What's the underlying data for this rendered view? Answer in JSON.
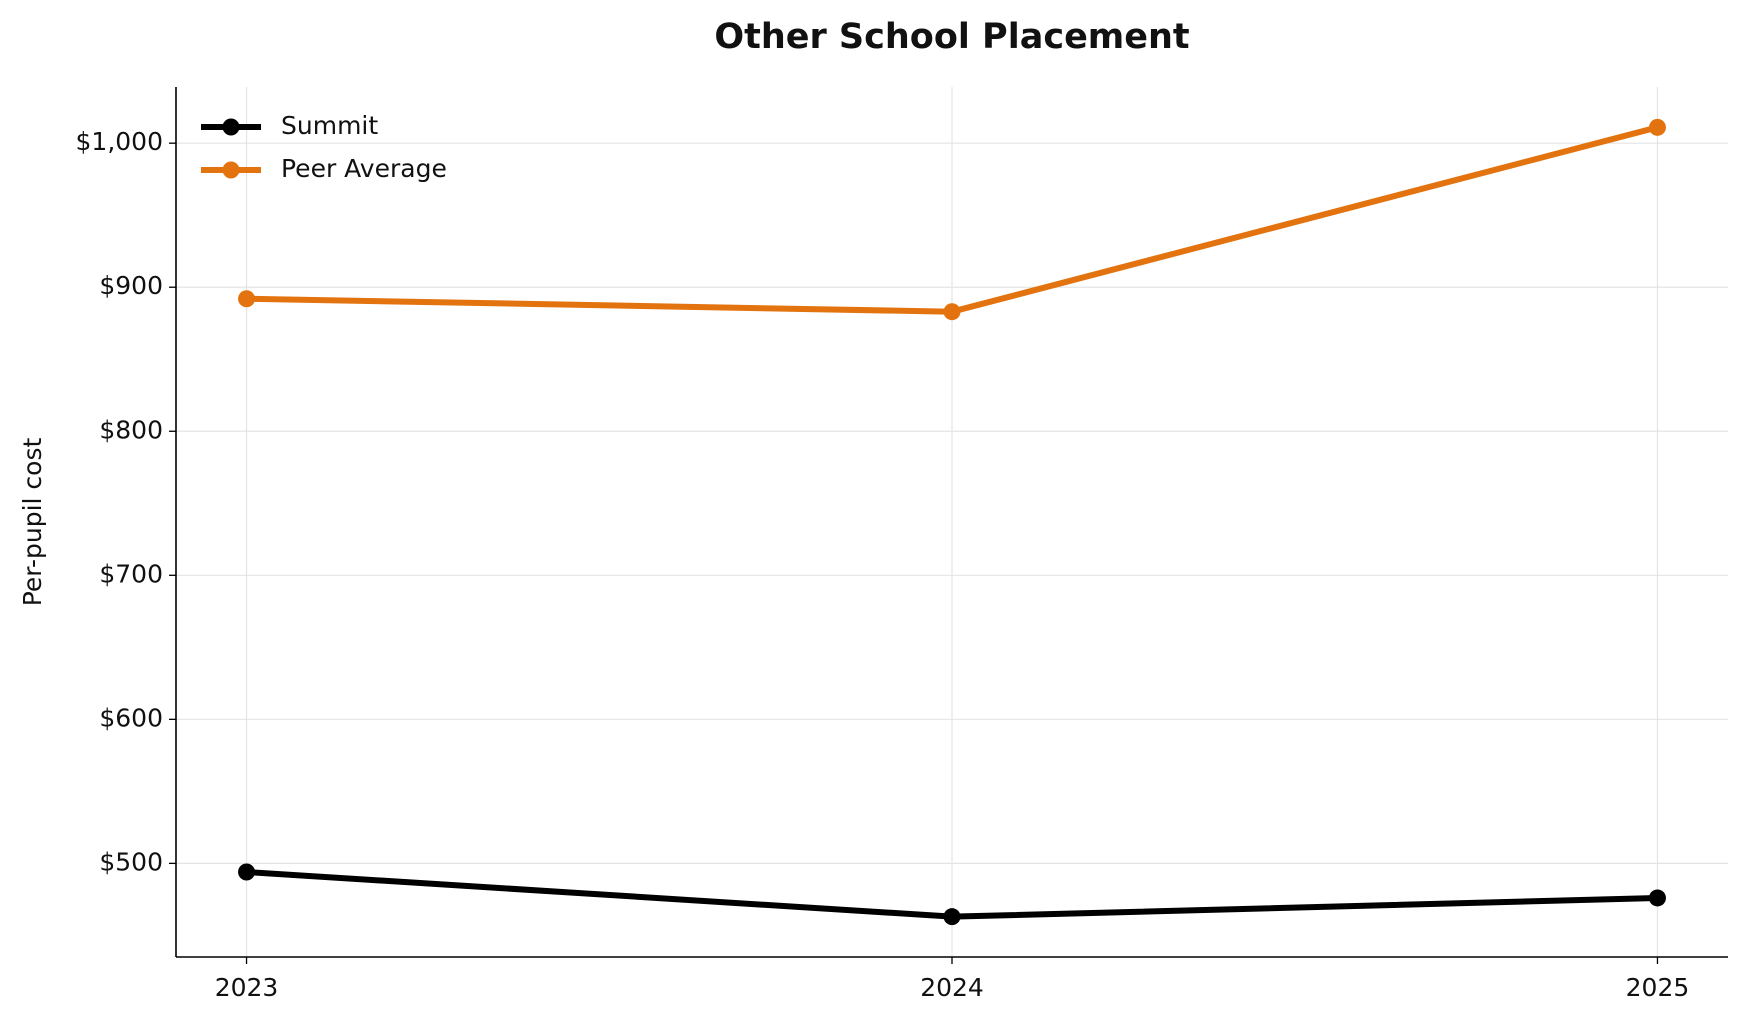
{
  "chart_data": {
    "type": "line",
    "title": "Other School Placement",
    "ylabel": "Per-pupil cost",
    "x": [
      2023,
      2024,
      2025
    ],
    "series": [
      {
        "name": "Summit",
        "color": "#000000",
        "values": [
          494,
          463,
          476
        ]
      },
      {
        "name": "Peer Average",
        "color": "#e3730e",
        "values": [
          892,
          883,
          1011
        ]
      }
    ],
    "xlim": [
      2022.9,
      2025.1
    ],
    "xticks": [
      2023,
      2024,
      2025
    ],
    "ylim": [
      435,
      1039
    ],
    "yticks": [
      {
        "value": 500,
        "label": "$500"
      },
      {
        "value": 600,
        "label": "$600"
      },
      {
        "value": 700,
        "label": "$700"
      },
      {
        "value": 800,
        "label": "$800"
      },
      {
        "value": 900,
        "label": "$900"
      },
      {
        "value": 1000,
        "label": "$1,000"
      }
    ],
    "grid": true,
    "legend": "upper-left"
  }
}
